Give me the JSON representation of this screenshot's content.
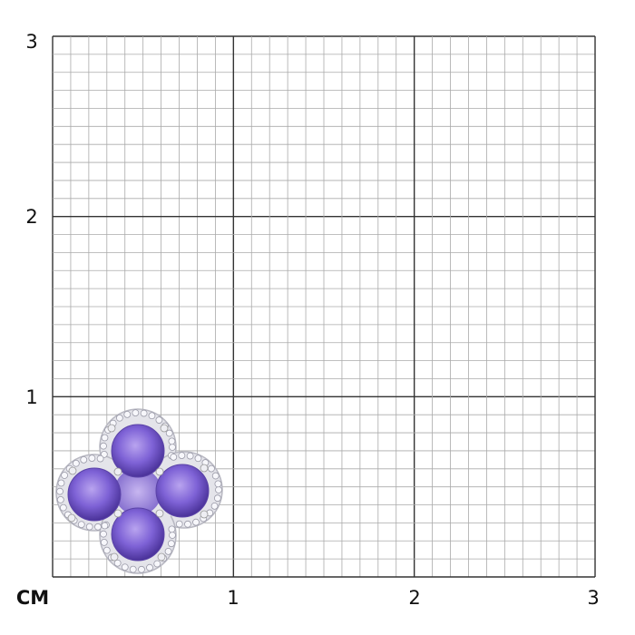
{
  "y_labels": [
    "3",
    "2",
    "1"
  ],
  "x_labels": [
    "CM",
    "1",
    "2",
    "3"
  ]
}
